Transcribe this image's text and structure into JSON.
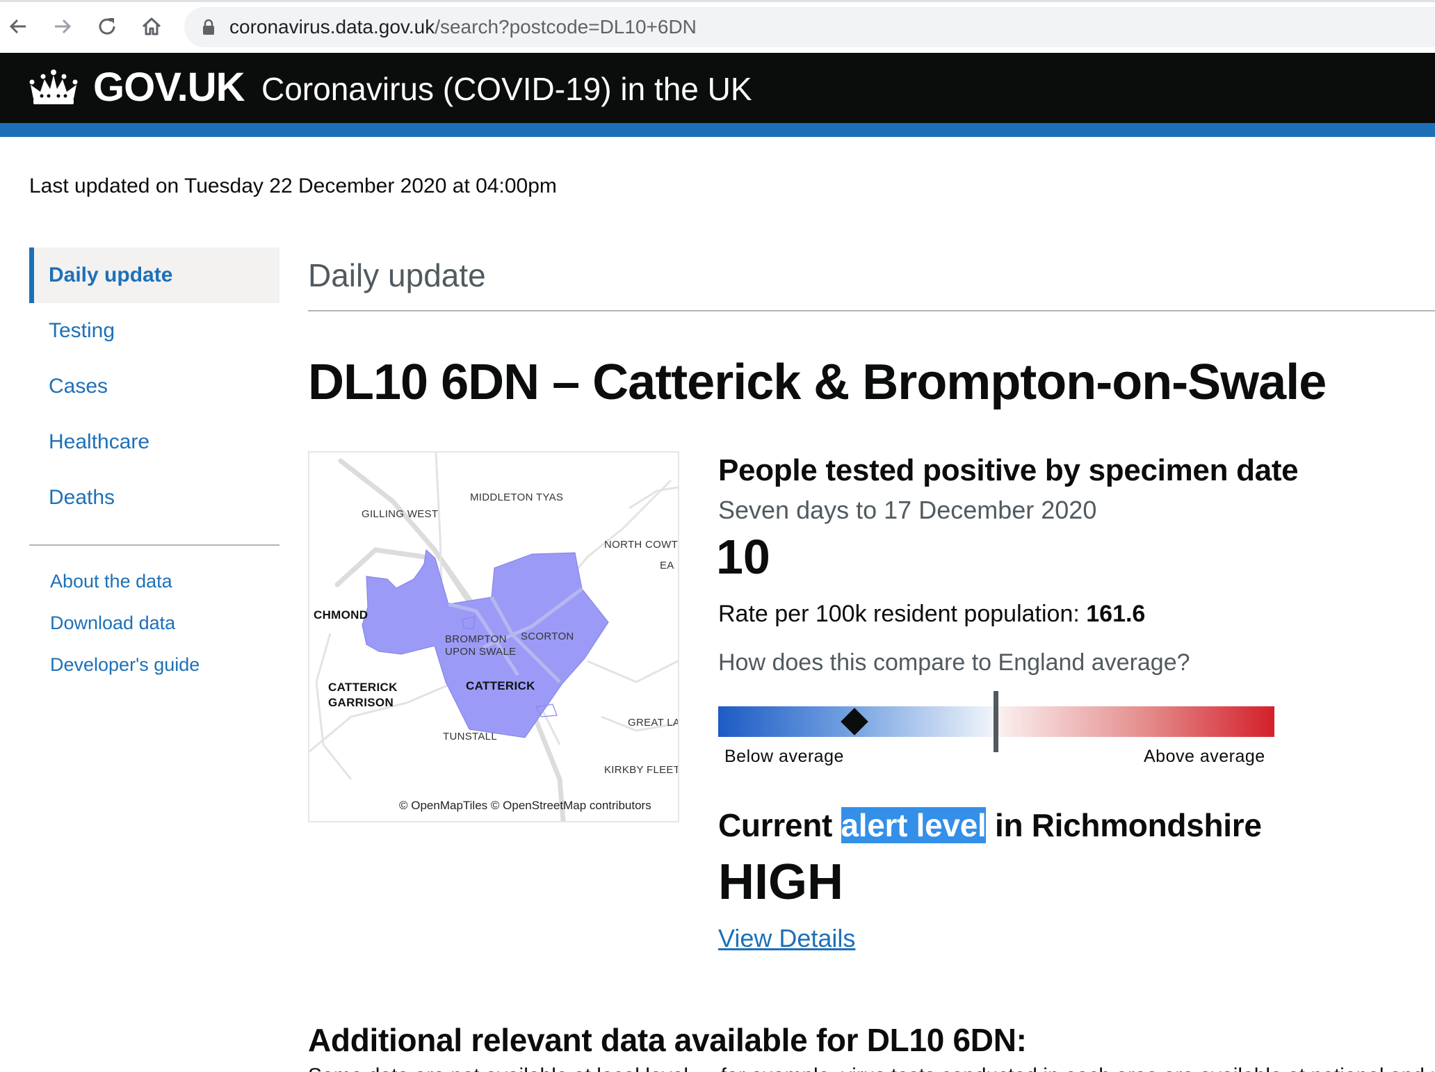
{
  "browser": {
    "url_host": "coronavirus.data.gov.uk",
    "url_path": "/search?postcode=DL10+6DN"
  },
  "header": {
    "brand": "GOV.UK",
    "service_name": "Coronavirus (COVID-19) in the UK"
  },
  "last_updated": "Last updated on Tuesday 22 December 2020 at 04:00pm",
  "sidebar": {
    "items": [
      {
        "label": "Daily update",
        "active": true
      },
      {
        "label": "Testing"
      },
      {
        "label": "Cases"
      },
      {
        "label": "Healthcare"
      },
      {
        "label": "Deaths"
      }
    ],
    "links": [
      {
        "label": "About the data"
      },
      {
        "label": "Download data"
      },
      {
        "label": "Developer's guide"
      }
    ]
  },
  "main": {
    "page_heading": "Daily update",
    "location_title": "DL10 6DN – Catterick & Brompton-on-Swale",
    "map": {
      "labels": {
        "middleton_tyas": "MIDDLETON TYAS",
        "gilling_west": "GILLING WEST",
        "north_cowton": "NORTH COWT",
        "ea": "EA",
        "richmond": "CHMOND",
        "brompton_1": "BROMPTON",
        "brompton_2": "UPON SWALE",
        "scorton": "SCORTON",
        "catterick_garrison_1": "CATTERICK",
        "catterick_garrison_2": "GARRISON",
        "catterick": "CATTERICK",
        "great_langton": "GREAT LA",
        "tunstall": "TUNSTALL",
        "kirkby_fleetham": "KIRKBY FLEETH"
      },
      "attribution": "© OpenMapTiles © OpenStreetMap contributors",
      "area_fill": "#9b9bf7"
    },
    "positive_tests": {
      "heading": "People tested positive by specimen date",
      "period": "Seven days to 17 December 2020",
      "value": "10",
      "rate_label": "Rate per 100k resident population:",
      "rate_value": "161.6",
      "compare_question": "How does this compare to England average?",
      "gauge": {
        "below_label": "Below average",
        "above_label": "Above average",
        "marker_position": 0.245
      }
    },
    "alert": {
      "heading_pre": "Current",
      "heading_highlight": "alert level",
      "heading_post": "in Richmondshire",
      "level": "HIGH",
      "details_link": "View Details"
    },
    "additional_heading": "Additional relevant data available for DL10 6DN:",
    "additional_text": "Some data are not available at local level — for example, virus tests conducted in each area are available at national and regional level"
  },
  "colors": {
    "govuk_black": "#0b0c0c",
    "govuk_blue": "#1d70b8",
    "secondary_text": "#505a5f",
    "selection_highlight": "#338fe8"
  }
}
